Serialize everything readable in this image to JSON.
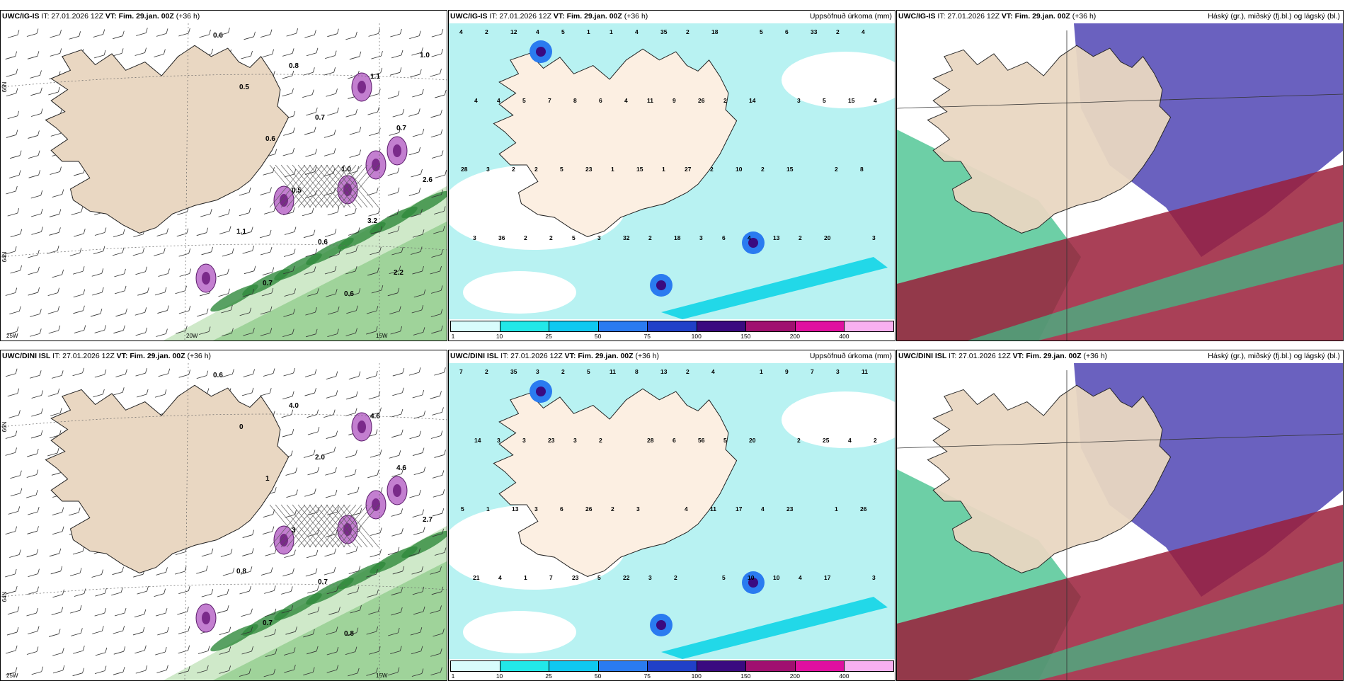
{
  "panels": [
    {
      "model": "UWC/IG-IS",
      "it": "IT: 27.01.2026 12Z",
      "vt": "VT: Fim. 29.jan. 00Z",
      "lead": "(+36 h)",
      "right": "",
      "kind": "wind",
      "lat_labels": [
        "66N",
        "64N"
      ],
      "lon_labels": [
        "25W",
        "20W",
        "15W"
      ],
      "values": [
        "0.6",
        "0.5",
        "0.6",
        "0.5",
        "0.6",
        "0.6",
        "1.1",
        "0.7",
        "2.6",
        "1.1",
        "0.7",
        "0.8",
        "0.7",
        "1.0",
        "3.2",
        "2.2",
        "1.0"
      ]
    },
    {
      "model": "UWC/IG-IS",
      "it": "IT: 27.01.2026 12Z",
      "vt": "VT: Fim. 29.jan. 00Z",
      "lead": "(+36 h)",
      "right": "Uppsöfnuð úrkoma (mm)",
      "kind": "precip",
      "values": [
        "4",
        "4",
        "2",
        "5",
        "1",
        "11",
        "27",
        "6",
        "5",
        "3",
        "2",
        "3",
        "2",
        "5",
        "5",
        "3",
        "4",
        "9",
        "2",
        "4",
        "6",
        "5",
        "8",
        "3",
        "12",
        "7",
        "23",
        "32",
        "35",
        "26",
        "10",
        "13",
        "33",
        "15",
        "28",
        "36",
        "4",
        "8",
        "1",
        "2",
        "2",
        "2",
        "2",
        "2",
        "2",
        "4",
        "3",
        "2",
        "5",
        "6",
        "15",
        "18",
        "18",
        "14",
        "15",
        "20",
        "4",
        "4",
        "2",
        "2",
        "1",
        "4",
        "1",
        "3"
      ]
    },
    {
      "model": "UWC/IG-IS",
      "it": "IT: 27.01.2026 12Z",
      "vt": "VT: Fim. 29.jan. 00Z",
      "lead": "(+36 h)",
      "right": "Háský (gr.), miðský (fj.bl.) og lágský (bl.)",
      "kind": "cloud",
      "values": []
    },
    {
      "model": "UWC/DINI ISL",
      "it": "IT: 27.01.2026 12Z",
      "vt": "VT: Fim. 29.jan. 00Z",
      "lead": "(+36 h)",
      "right": "",
      "kind": "wind",
      "lat_labels": [
        "66N",
        "64N"
      ],
      "lon_labels": [
        "25W",
        "15W"
      ],
      "values": [
        "0.6",
        "0",
        "1",
        "3",
        "0.7",
        "0.8",
        "4.6",
        "4.6",
        "2.7",
        "0.8",
        "0.7",
        "4.0",
        "2.0"
      ]
    },
    {
      "model": "UWC/DINI ISL",
      "it": "IT: 27.01.2026 12Z",
      "vt": "VT: Fim. 29.jan. 00Z",
      "lead": "(+36 h)",
      "right": "Uppsöfnuð úrkoma (mm)",
      "kind": "precip",
      "values": [
        "7",
        "3",
        "3",
        "23",
        "11",
        "28",
        "4",
        "5",
        "1",
        "2",
        "1",
        "3",
        "2",
        "3",
        "6",
        "5",
        "8",
        "6",
        "11",
        "10",
        "9",
        "25",
        "26",
        "21",
        "35",
        "23",
        "26",
        "22",
        "13",
        "56",
        "17",
        "10",
        "7",
        "4",
        "5",
        "4",
        "3",
        "3",
        "2",
        "3",
        "2",
        "5",
        "4",
        "4",
        "3",
        "2",
        "1",
        "1",
        "2",
        "2",
        "3",
        "2",
        "4",
        "20",
        "23",
        "17",
        "11",
        "14",
        "13",
        "7",
        "5"
      ]
    },
    {
      "model": "UWC/DINI ISL",
      "it": "IT: 27.01.2026 12Z",
      "vt": "VT: Fim. 29.jan. 00Z",
      "lead": "(+36 h)",
      "right": "Háský (gr.), miðský (fj.bl.) og lágský (bl.)",
      "kind": "cloud",
      "values": []
    }
  ],
  "colorbar": {
    "ticks": [
      "1",
      "10",
      "25",
      "50",
      "75",
      "100",
      "150",
      "200",
      "400"
    ],
    "colors": [
      "#d8fcfc",
      "#22e8e8",
      "#0fc8f0",
      "#2a7bf0",
      "#2040c8",
      "#3a0a80",
      "#a01070",
      "#e010a0",
      "#f8b0f0"
    ]
  },
  "colors": {
    "land": "#e9d7c2",
    "sea_precip": "#b8f2f2",
    "cloud_blue": "#5a50b8",
    "cloud_red": "#9a1f3a",
    "cloud_green": "#3cbf88",
    "wind_green": "#2f8a3c"
  }
}
